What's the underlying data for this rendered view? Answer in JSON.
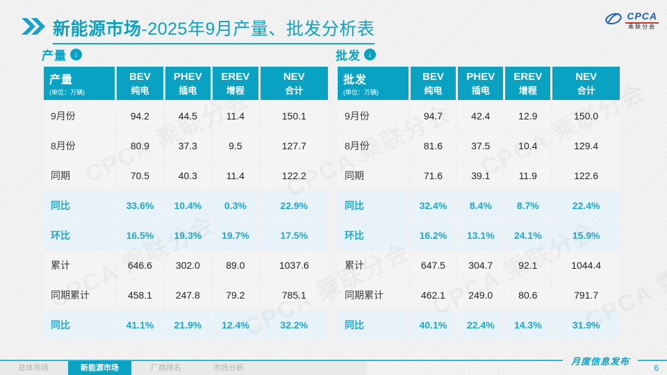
{
  "colors": {
    "accent": "#0aa2c3",
    "accent_text": "#1fa6cc",
    "hl_row": "#e7f3f9",
    "row_bg": "#f4f4f5",
    "logo_blue": "#1d5fae",
    "logo_red": "#c23a2b"
  },
  "title": {
    "bold": "新能源市场",
    "rest": "-2025年9月产量、批发分析表"
  },
  "logo": {
    "brand": "CPCA",
    "sub": "乘联分会"
  },
  "icons": {
    "section_down_arrow": "↓"
  },
  "watermark": {
    "text": "CPCA 乘联分会"
  },
  "tables": [
    {
      "section_label": "产量",
      "header_label": "产量",
      "unit": "(单位：万辆)",
      "columns": [
        {
          "en": "BEV",
          "cn": "纯电"
        },
        {
          "en": "PHEV",
          "cn": "插电"
        },
        {
          "en": "EREV",
          "cn": "增程"
        },
        {
          "en": "NEV",
          "cn": "合计"
        }
      ],
      "rows": [
        {
          "label": "9月份",
          "values": [
            "94.2",
            "44.5",
            "11.4",
            "150.1"
          ],
          "highlight": false
        },
        {
          "label": "8月份",
          "values": [
            "80.9",
            "37.3",
            "9.5",
            "127.7"
          ],
          "highlight": false
        },
        {
          "label": "同期",
          "values": [
            "70.5",
            "40.3",
            "11.4",
            "122.2"
          ],
          "highlight": false
        },
        {
          "label": "同比",
          "values": [
            "33.6%",
            "10.4%",
            "0.3%",
            "22.9%"
          ],
          "highlight": true
        },
        {
          "label": "环比",
          "values": [
            "16.5%",
            "19.3%",
            "19.7%",
            "17.5%"
          ],
          "highlight": true
        },
        {
          "label": "累计",
          "values": [
            "646.6",
            "302.0",
            "89.0",
            "1037.6"
          ],
          "highlight": false
        },
        {
          "label": "同期累计",
          "values": [
            "458.1",
            "247.8",
            "79.2",
            "785.1"
          ],
          "highlight": false
        },
        {
          "label": "同比",
          "values": [
            "41.1%",
            "21.9%",
            "12.4%",
            "32.2%"
          ],
          "highlight": true
        }
      ]
    },
    {
      "section_label": "批发",
      "header_label": "批发",
      "unit": "(单位：万辆)",
      "columns": [
        {
          "en": "BEV",
          "cn": "纯电"
        },
        {
          "en": "PHEV",
          "cn": "插电"
        },
        {
          "en": "EREV",
          "cn": "增程"
        },
        {
          "en": "NEV",
          "cn": "合计"
        }
      ],
      "rows": [
        {
          "label": "9月份",
          "values": [
            "94.7",
            "42.4",
            "12.9",
            "150.0"
          ],
          "highlight": false
        },
        {
          "label": "8月份",
          "values": [
            "81.6",
            "37.5",
            "10.4",
            "129.4"
          ],
          "highlight": false
        },
        {
          "label": "同期",
          "values": [
            "71.6",
            "39.1",
            "11.9",
            "122.6"
          ],
          "highlight": false
        },
        {
          "label": "同比",
          "values": [
            "32.4%",
            "8.4%",
            "8.7%",
            "22.4%"
          ],
          "highlight": true
        },
        {
          "label": "环比",
          "values": [
            "16.2%",
            "13.1%",
            "24.1%",
            "15.9%"
          ],
          "highlight": true
        },
        {
          "label": "累计",
          "values": [
            "647.5",
            "304.7",
            "92.1",
            "1044.4"
          ],
          "highlight": false
        },
        {
          "label": "同期累计",
          "values": [
            "462.1",
            "249.0",
            "80.6",
            "791.7"
          ],
          "highlight": false
        },
        {
          "label": "同比",
          "values": [
            "40.1%",
            "22.4%",
            "14.3%",
            "31.9%"
          ],
          "highlight": true
        }
      ]
    }
  ],
  "footer": {
    "tabs": [
      {
        "label": "总体市场",
        "active": false
      },
      {
        "label": "新能源市场",
        "active": true
      },
      {
        "label": "厂商排名",
        "active": false
      },
      {
        "label": "市场分析",
        "active": false
      }
    ],
    "stamp": "月度信息发布",
    "page": "6"
  }
}
